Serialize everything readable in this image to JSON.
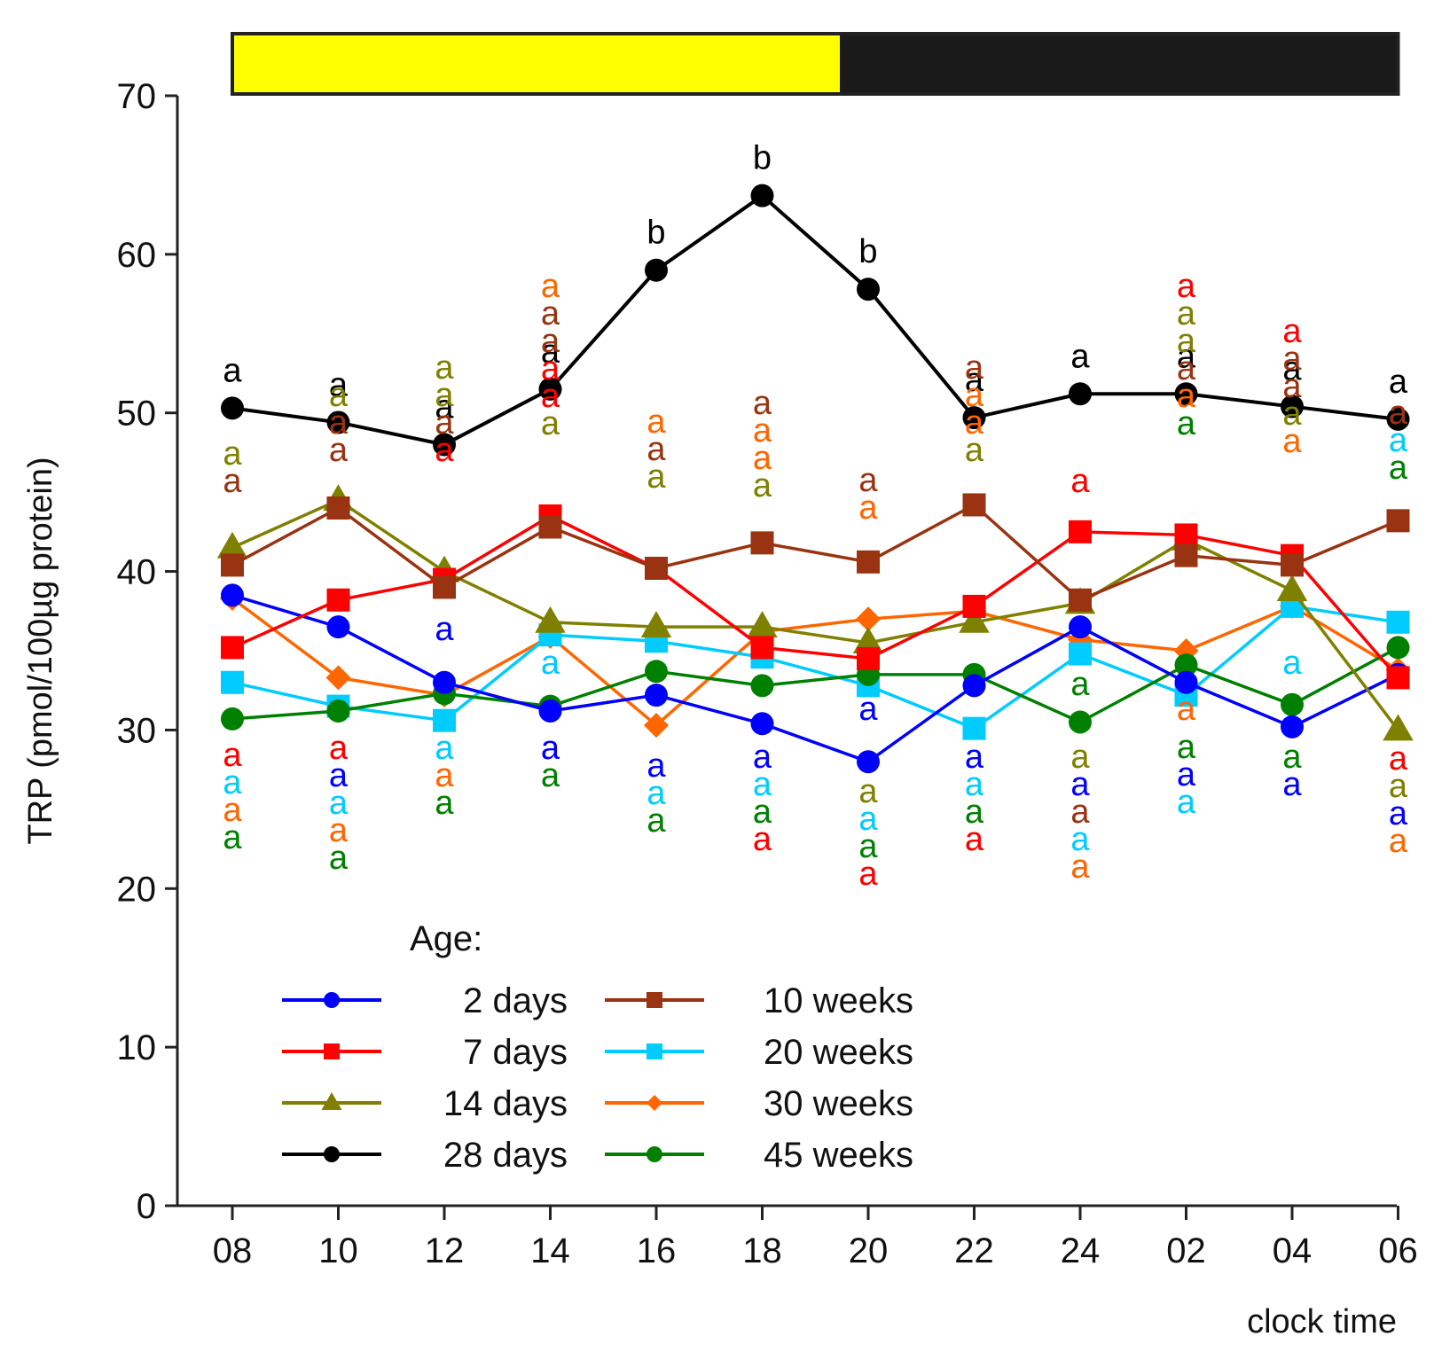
{
  "chart_data": {
    "type": "line",
    "ylabel": "TRP (pmol/100µg protein)",
    "xlabel": "clock time",
    "ylim": [
      0,
      70
    ],
    "yticks": [
      0,
      10,
      20,
      30,
      40,
      50,
      60,
      70
    ],
    "categories": [
      "08",
      "10",
      "12",
      "14",
      "16",
      "18",
      "20",
      "22",
      "24",
      "02",
      "04",
      "06"
    ],
    "light_dark_bar": {
      "light": "#ffff00",
      "dark": "#1a1a1a",
      "light_until_category": "20"
    },
    "legend_title": "Age:",
    "series": [
      {
        "name": "2 days",
        "color": "#0000ff",
        "marker": "circle",
        "values": [
          38.5,
          36.5,
          33.0,
          31.2,
          32.2,
          30.4,
          28.0,
          32.8,
          36.5,
          33.0,
          30.2,
          33.5
        ]
      },
      {
        "name": "7 days",
        "color": "#ff0000",
        "marker": "square",
        "values": [
          35.2,
          38.2,
          39.5,
          43.5,
          40.2,
          35.2,
          34.5,
          37.8,
          42.5,
          42.3,
          41.0,
          33.3
        ]
      },
      {
        "name": "14 days",
        "color": "#808000",
        "marker": "triangle",
        "values": [
          41.5,
          44.5,
          40.0,
          36.8,
          36.5,
          36.5,
          35.5,
          36.8,
          38.0,
          42.0,
          38.8,
          30.0
        ]
      },
      {
        "name": "28 days",
        "color": "#000000",
        "marker": "circle",
        "values": [
          50.3,
          49.4,
          48.0,
          51.5,
          59.0,
          63.7,
          57.8,
          49.7,
          51.2,
          51.2,
          50.4,
          49.6
        ]
      },
      {
        "name": "10 weeks",
        "color": "#993311",
        "marker": "square",
        "values": [
          40.4,
          44.0,
          39.0,
          42.8,
          40.2,
          41.8,
          40.6,
          44.2,
          38.2,
          41.0,
          40.4,
          43.2
        ]
      },
      {
        "name": "20 weeks",
        "color": "#00ccff",
        "marker": "square",
        "values": [
          33.0,
          31.5,
          30.6,
          36.0,
          35.6,
          34.6,
          32.8,
          30.1,
          34.8,
          32.2,
          37.8,
          36.8
        ]
      },
      {
        "name": "30 weeks",
        "color": "#ff6600",
        "marker": "diamond",
        "values": [
          38.3,
          33.3,
          32.2,
          35.9,
          30.3,
          36.2,
          37.0,
          37.5,
          35.7,
          35.0,
          37.8,
          33.8
        ]
      },
      {
        "name": "45 weeks",
        "color": "#008000",
        "marker": "circle",
        "values": [
          30.7,
          31.2,
          32.3,
          31.5,
          33.7,
          32.8,
          33.5,
          33.5,
          30.5,
          34.1,
          31.6,
          35.2
        ]
      }
    ],
    "annotations": {
      "letters_above_28_days": [
        "a",
        "a",
        "a",
        "a",
        "b",
        "b",
        "b",
        "a",
        "a",
        "a",
        "a",
        "a"
      ],
      "upper_groups": [
        [
          "14 days",
          "10 weeks"
        ],
        [
          "14 days",
          "10 weeks",
          "10 weeks"
        ],
        [
          "14 days",
          "14 days",
          "10 weeks",
          "7 days"
        ],
        [
          "30 weeks",
          "10 weeks",
          "10 weeks",
          "7 days",
          "7 days",
          "14 days"
        ],
        [
          "30 weeks",
          "10 weeks",
          "14 days"
        ],
        [
          "10 weeks",
          "30 weeks",
          "30 weeks",
          "14 days"
        ],
        [
          "10 weeks",
          "30 weeks"
        ],
        [
          "10 weeks",
          "30 weeks",
          "30 weeks",
          "14 days"
        ],
        [
          "7 days"
        ],
        [
          "7 days",
          "14 days",
          "14 days",
          "10 weeks",
          "30 weeks",
          "45 weeks"
        ],
        [
          "7 days",
          "10 weeks",
          "10 weeks",
          "14 days",
          "30 weeks"
        ],
        [
          "10 weeks",
          "20 weeks",
          "45 weeks"
        ]
      ],
      "mid_groups": [
        [],
        [],
        [
          "2 days"
        ],
        [
          "20 weeks"
        ],
        [],
        [],
        [],
        [],
        [
          "45 weeks"
        ],
        [],
        [
          "20 weeks"
        ],
        []
      ],
      "mid_groups_lower": [
        [],
        [],
        [],
        [],
        [],
        [],
        [
          "2 days"
        ],
        [],
        [],
        [
          "30 weeks"
        ],
        [],
        []
      ],
      "lower_groups": [
        [
          "7 days",
          "20 weeks",
          "30 weeks",
          "45 weeks"
        ],
        [
          "7 days",
          "2 days",
          "20 weeks",
          "30 weeks",
          "45 weeks"
        ],
        [
          "20 weeks",
          "30 weeks",
          "45 weeks"
        ],
        [
          "2 days",
          "45 weeks"
        ],
        [
          "2 days",
          "20 weeks",
          "45 weeks"
        ],
        [
          "2 days",
          "20 weeks",
          "45 weeks",
          "7 days"
        ],
        [
          "14 days",
          "20 weeks",
          "45 weeks",
          "7 days"
        ],
        [
          "2 days",
          "20 weeks",
          "45 weeks",
          "7 days"
        ],
        [
          "14 days",
          "2 days",
          "10 weeks",
          "20 weeks",
          "30 weeks"
        ],
        [
          "45 weeks",
          "2 days",
          "20 weeks"
        ],
        [
          "45 weeks",
          "2 days"
        ],
        [
          "7 days",
          "14 days",
          "2 days",
          "30 weeks"
        ]
      ]
    }
  }
}
